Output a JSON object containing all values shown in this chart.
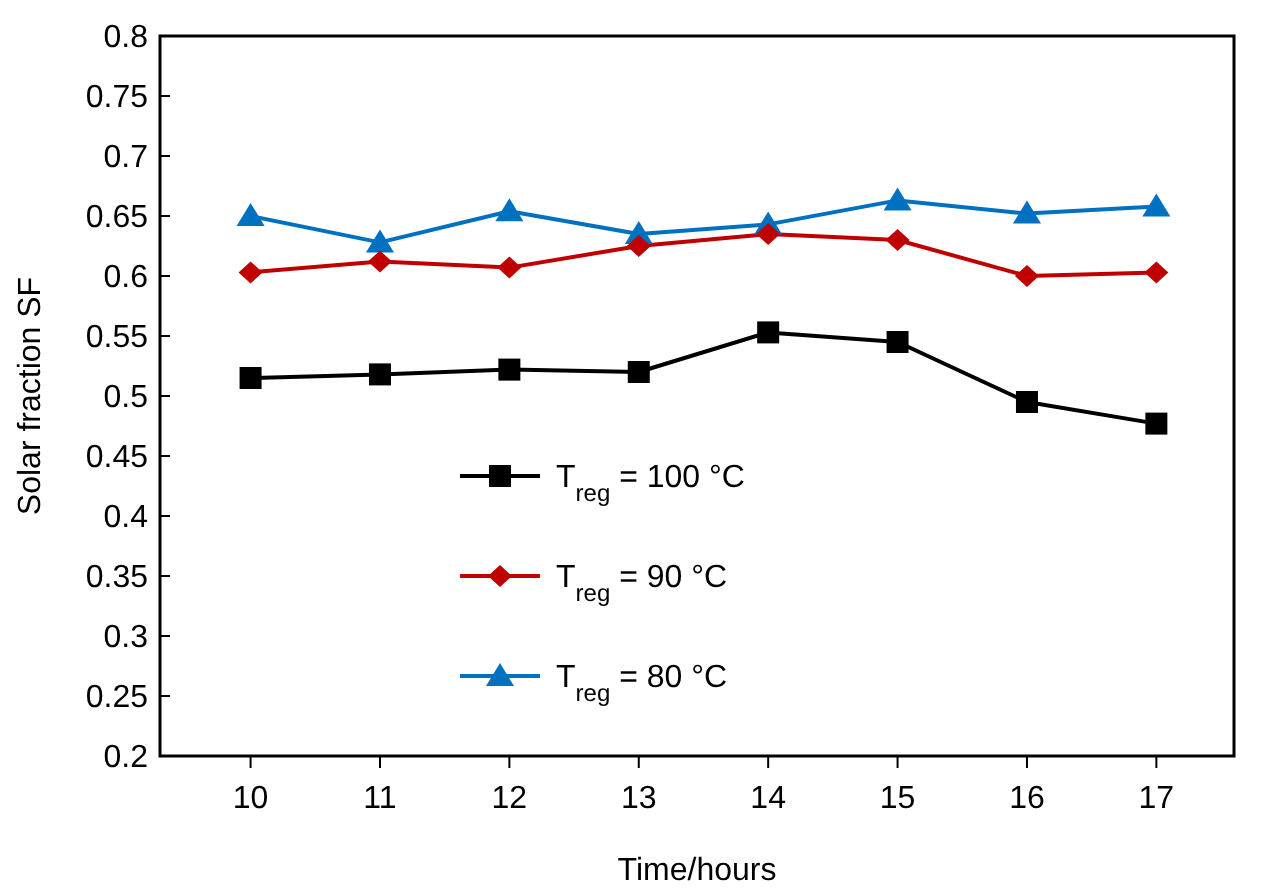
{
  "chart_data": {
    "type": "line",
    "xlabel": "Time/hours",
    "ylabel": "Solar fraction SF",
    "x": [
      10,
      11,
      12,
      13,
      14,
      15,
      16,
      17
    ],
    "series": [
      {
        "name": "T$_{reg}$ = 100 °C",
        "color": "#000000",
        "marker": "square",
        "values": [
          0.515,
          0.518,
          0.522,
          0.52,
          0.553,
          0.545,
          0.495,
          0.477
        ]
      },
      {
        "name": "T$_{reg}$ = 90 °C",
        "color": "#c00000",
        "marker": "diamond",
        "values": [
          0.603,
          0.612,
          0.607,
          0.625,
          0.635,
          0.63,
          0.6,
          0.603
        ]
      },
      {
        "name": "T$_{reg}$ = 80 °C",
        "color": "#0070c0",
        "marker": "triangle",
        "values": [
          0.65,
          0.628,
          0.654,
          0.635,
          0.643,
          0.663,
          0.652,
          0.658
        ]
      }
    ],
    "xlim": [
      9.3,
      17.6
    ],
    "xticks": [
      10,
      11,
      12,
      13,
      14,
      15,
      16,
      17
    ],
    "ylim": [
      0.2,
      0.8
    ],
    "yticks": [
      0.2,
      0.25,
      0.3,
      0.35,
      0.4,
      0.45,
      0.5,
      0.55,
      0.6,
      0.65,
      0.7,
      0.75,
      0.8
    ],
    "legend": "bottom left",
    "grid": false,
    "line_style": "solid"
  }
}
